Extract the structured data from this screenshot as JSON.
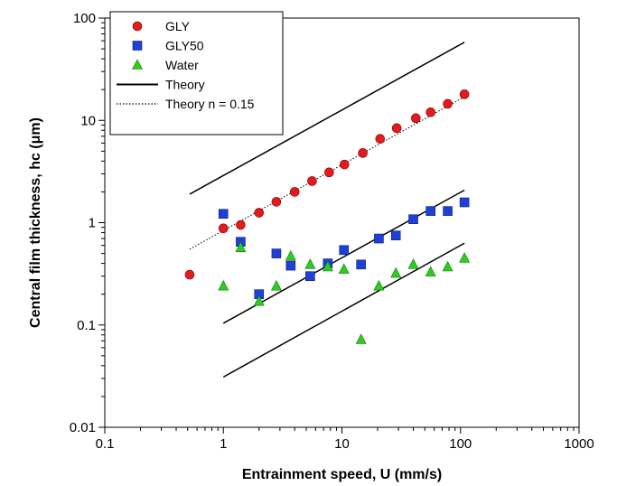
{
  "chart_data": {
    "type": "scatter",
    "xlabel": "Entrainment speed, U (mm/s)",
    "ylabel": "Central film thickness, hc (μm)",
    "xscale": "log",
    "yscale": "log",
    "xlim": [
      0.1,
      1000
    ],
    "ylim": [
      0.01,
      100
    ],
    "x_ticks": [
      0.1,
      1,
      10,
      100,
      1000
    ],
    "x_tick_labels": [
      "0.1",
      "1",
      "10",
      "100",
      "1000"
    ],
    "y_ticks": [
      0.01,
      0.1,
      1,
      10,
      100
    ],
    "y_tick_labels": [
      "0.01",
      "0.1",
      "1",
      "10",
      "100"
    ],
    "legend_position": "top-left",
    "series": [
      {
        "name": "GLY",
        "kind": "points",
        "marker": "circle",
        "color": "#e41a1c",
        "points": [
          [
            0.52,
            0.31
          ],
          [
            1.0,
            0.88
          ],
          [
            1.4,
            0.95
          ],
          [
            2.0,
            1.25
          ],
          [
            2.8,
            1.6
          ],
          [
            4.0,
            2.0
          ],
          [
            5.6,
            2.55
          ],
          [
            7.8,
            3.1
          ],
          [
            10.5,
            3.7
          ],
          [
            15.0,
            4.8
          ],
          [
            21.0,
            6.6
          ],
          [
            29.0,
            8.4
          ],
          [
            42.0,
            10.5
          ],
          [
            56.0,
            12.0
          ],
          [
            78.0,
            14.5
          ],
          [
            108.0,
            18.0
          ]
        ]
      },
      {
        "name": "GLY50",
        "kind": "points",
        "marker": "square",
        "color": "#1f3fd6",
        "points": [
          [
            1.0,
            1.22
          ],
          [
            1.4,
            0.65
          ],
          [
            2.0,
            0.2
          ],
          [
            2.8,
            0.5
          ],
          [
            3.7,
            0.38
          ],
          [
            5.4,
            0.3
          ],
          [
            7.6,
            0.4
          ],
          [
            10.4,
            0.54
          ],
          [
            14.5,
            0.39
          ],
          [
            20.5,
            0.7
          ],
          [
            28.5,
            0.75
          ],
          [
            40.0,
            1.08
          ],
          [
            56.0,
            1.3
          ],
          [
            78.0,
            1.3
          ],
          [
            108.0,
            1.58
          ]
        ]
      },
      {
        "name": "Water",
        "kind": "points",
        "marker": "triangle",
        "color": "#2ecc1f",
        "points": [
          [
            1.0,
            0.24
          ],
          [
            1.4,
            0.57
          ],
          [
            2.0,
            0.17
          ],
          [
            2.8,
            0.24
          ],
          [
            3.7,
            0.47
          ],
          [
            5.4,
            0.39
          ],
          [
            7.6,
            0.37
          ],
          [
            10.4,
            0.35
          ],
          [
            14.5,
            0.072
          ],
          [
            20.5,
            0.24
          ],
          [
            28.5,
            0.32
          ],
          [
            40.0,
            0.39
          ],
          [
            56.0,
            0.33
          ],
          [
            78.0,
            0.37
          ],
          [
            108.0,
            0.45
          ]
        ]
      },
      {
        "name": "Theory",
        "kind": "lines",
        "style": "solid",
        "color": "#000000",
        "segments": [
          [
            [
              0.52,
              1.9
            ],
            [
              108.0,
              58.0
            ]
          ],
          [
            [
              1.0,
              0.104
            ],
            [
              108.0,
              2.08
            ]
          ],
          [
            [
              1.0,
              0.031
            ],
            [
              108.0,
              0.63
            ]
          ]
        ]
      },
      {
        "name": "Theory n = 0.15",
        "kind": "lines",
        "style": "dotted",
        "color": "#000000",
        "segments": [
          [
            [
              0.52,
              0.55
            ],
            [
              108.0,
              17.0
            ]
          ]
        ]
      }
    ]
  }
}
